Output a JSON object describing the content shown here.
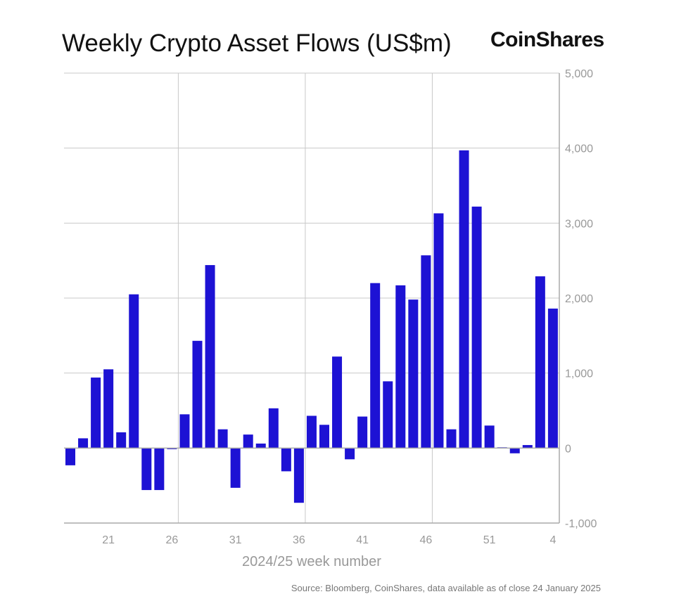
{
  "title": "Weekly Crypto Asset Flows (US$m)",
  "logo": "CoinShares",
  "source": "Source: Bloomberg, CoinShares, data available as of close 24 January 2025",
  "chart_data": {
    "type": "bar",
    "title": "Weekly Crypto Asset Flows (US$m)",
    "xlabel": "2024/25 week number",
    "ylabel": "",
    "ylim": [
      -1000,
      5000
    ],
    "yticks": [
      "5,000",
      "4,000",
      "3,000",
      "2,000",
      "1,000",
      "0",
      "-1,000"
    ],
    "ytick_values": [
      5000,
      4000,
      3000,
      2000,
      1000,
      0,
      -1000
    ],
    "xticks": [
      "21",
      "26",
      "31",
      "36",
      "41",
      "46",
      "51",
      "4"
    ],
    "grid": true,
    "bar_color": "#1d12d4",
    "categories": [
      "18",
      "19",
      "20",
      "21",
      "22",
      "23",
      "24",
      "25",
      "26",
      "27",
      "28",
      "29",
      "30",
      "31",
      "32",
      "33",
      "34",
      "35",
      "36",
      "37",
      "38",
      "39",
      "40",
      "41",
      "42",
      "43",
      "44",
      "45",
      "46",
      "47",
      "48",
      "49",
      "50",
      "51",
      "52",
      "1",
      "2",
      "3",
      "4"
    ],
    "values": [
      -230,
      130,
      940,
      1050,
      210,
      2050,
      -560,
      -560,
      -15,
      450,
      1430,
      2440,
      250,
      -530,
      180,
      60,
      530,
      -310,
      -730,
      430,
      310,
      1220,
      -150,
      420,
      2200,
      890,
      2170,
      1980,
      2570,
      3130,
      250,
      3970,
      3220,
      300,
      10,
      -70,
      40,
      2290,
      1860
    ]
  }
}
